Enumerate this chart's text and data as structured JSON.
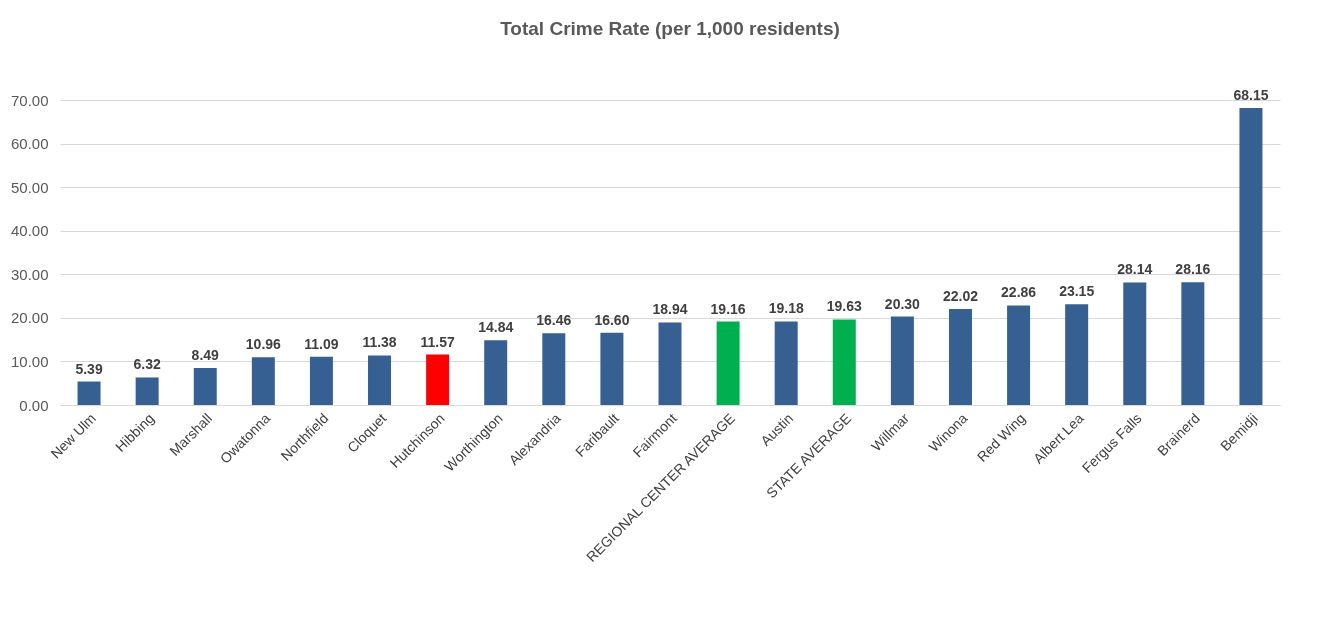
{
  "chart_data": {
    "type": "bar",
    "title": "Total Crime Rate (per 1,000 residents)",
    "categories": [
      "New Ulm",
      "Hibbing",
      "Marshall",
      "Owatonna",
      "Northfield",
      "Cloquet",
      "Hutchinson",
      "Worthington",
      "Alexandria",
      "Faribault",
      "Fairmont",
      "REGIONAL CENTER AVERAGE",
      "Austin",
      "STATE AVERAGE",
      "Willmar",
      "Winona",
      "Red Wing",
      "Albert Lea",
      "Fergus Falls",
      "Brainerd",
      "Bemidji"
    ],
    "values": [
      5.39,
      6.32,
      8.49,
      10.96,
      11.09,
      11.38,
      11.57,
      14.84,
      16.46,
      16.6,
      18.94,
      19.16,
      19.18,
      19.63,
      20.3,
      22.02,
      22.86,
      23.15,
      28.14,
      28.16,
      68.15
    ],
    "value_labels": [
      "5.39",
      "6.32",
      "8.49",
      "10.96",
      "11.09",
      "11.38",
      "11.57",
      "14.84",
      "16.46",
      "16.60",
      "18.94",
      "19.16",
      "19.18",
      "19.63",
      "20.30",
      "22.02",
      "22.86",
      "23.15",
      "28.14",
      "28.16",
      "68.15"
    ],
    "colors": [
      "#366092",
      "#366092",
      "#366092",
      "#366092",
      "#366092",
      "#366092",
      "#ff0000",
      "#366092",
      "#366092",
      "#366092",
      "#366092",
      "#00b050",
      "#366092",
      "#00b050",
      "#366092",
      "#366092",
      "#366092",
      "#366092",
      "#366092",
      "#366092",
      "#366092"
    ],
    "ylim": [
      0,
      70
    ],
    "yticks": [
      {
        "value": 0,
        "label": "0.00"
      },
      {
        "value": 10,
        "label": "10.00"
      },
      {
        "value": 20,
        "label": "20.00"
      },
      {
        "value": 30,
        "label": "30.00"
      },
      {
        "value": 40,
        "label": "40.00"
      },
      {
        "value": 50,
        "label": "50.00"
      },
      {
        "value": 60,
        "label": "60.00"
      },
      {
        "value": 70,
        "label": "70.00"
      }
    ],
    "grid": true
  }
}
